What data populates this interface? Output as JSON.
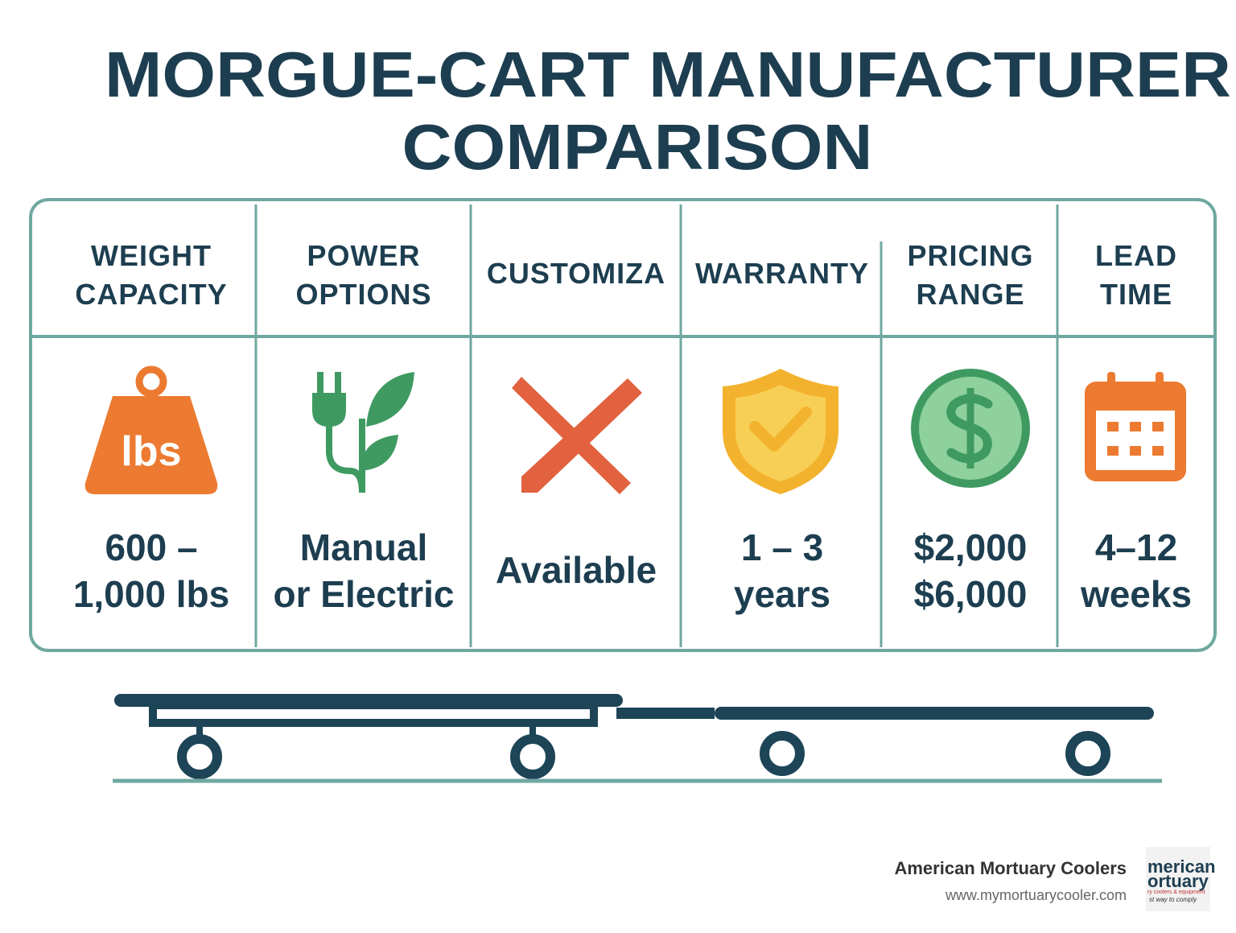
{
  "title": {
    "lines": [
      "MORGUE-CART MANUFACTURER",
      "COMPARISON"
    ]
  },
  "columns": [
    {
      "header": [
        "WEIGHT",
        "CAPACITY"
      ],
      "icon_label": "lbs",
      "value": [
        "600 –",
        "1,000 lbs"
      ]
    },
    {
      "header": [
        "POWER",
        "OPTIONS"
      ],
      "value": [
        "Manual",
        "or Electric"
      ]
    },
    {
      "header": [
        "CUSTOMIZA"
      ],
      "value": [
        "Available"
      ]
    },
    {
      "header": [
        "WARRANTY"
      ],
      "value": [
        "1 – 3",
        "years"
      ]
    },
    {
      "header": [
        "PRICING",
        "RANGE"
      ],
      "value": [
        "$2,000",
        "$6,000"
      ]
    },
    {
      "header": [
        "LEAD",
        "TIME"
      ],
      "value": [
        "4–12",
        "weeks"
      ]
    }
  ],
  "footer": {
    "brand": "American Mortuary Coolers",
    "url": "www.mymortuarycooler.com",
    "logo": {
      "line1": "merican",
      "line2": "ortuary",
      "tagline": "ry coolers & equipment",
      "motto": "st way to comply"
    }
  }
}
